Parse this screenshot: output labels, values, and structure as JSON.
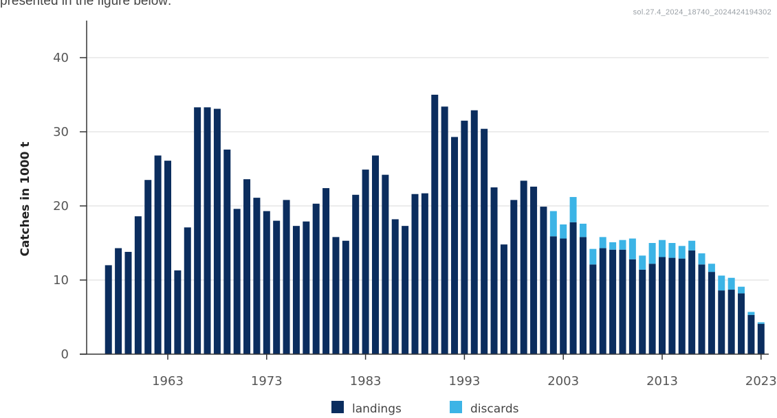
{
  "caption": {
    "text": "presented in the figure below:"
  },
  "stamp": "sol.27.4_2024_18740_2024424194302",
  "chart_data": {
    "type": "bar",
    "stacked": true,
    "title": "",
    "xlabel": "",
    "ylabel": "Catches in 1000 t",
    "ylim": [
      0,
      45
    ],
    "yticks": [
      0,
      10,
      20,
      30,
      40
    ],
    "xticks": [
      1963,
      1973,
      1983,
      1993,
      2003,
      2013,
      2023
    ],
    "grid": true,
    "legend_position": "bottom",
    "categories": [
      1957,
      1958,
      1959,
      1960,
      1961,
      1962,
      1963,
      1964,
      1965,
      1966,
      1967,
      1968,
      1969,
      1970,
      1971,
      1972,
      1973,
      1974,
      1975,
      1976,
      1977,
      1978,
      1979,
      1980,
      1981,
      1982,
      1983,
      1984,
      1985,
      1986,
      1987,
      1988,
      1989,
      1990,
      1991,
      1992,
      1993,
      1994,
      1995,
      1996,
      1997,
      1998,
      1999,
      2000,
      2001,
      2002,
      2003,
      2004,
      2005,
      2006,
      2007,
      2008,
      2009,
      2010,
      2011,
      2012,
      2013,
      2014,
      2015,
      2016,
      2017,
      2018,
      2019,
      2020,
      2021,
      2022,
      2023
    ],
    "series": [
      {
        "name": "landings",
        "color": "#0b2d5e",
        "values": [
          12.0,
          14.3,
          13.8,
          18.6,
          23.5,
          26.8,
          26.1,
          11.3,
          17.1,
          33.3,
          33.3,
          33.1,
          27.6,
          19.6,
          23.6,
          21.1,
          19.3,
          18.0,
          20.8,
          17.3,
          17.9,
          20.3,
          22.4,
          15.8,
          15.3,
          21.5,
          24.9,
          26.8,
          24.2,
          18.2,
          17.3,
          21.6,
          21.7,
          35.0,
          33.4,
          29.3,
          31.5,
          32.9,
          30.4,
          22.5,
          14.8,
          20.8,
          23.4,
          22.6,
          19.9,
          15.9,
          15.6,
          17.8,
          15.8,
          12.1,
          14.3,
          14.1,
          14.1,
          12.8,
          11.4,
          12.2,
          13.1,
          13.0,
          12.9,
          14.0,
          12.1,
          11.1,
          8.6,
          8.7,
          8.2,
          5.3,
          4.1
        ]
      },
      {
        "name": "discards",
        "color": "#3cb4e6",
        "values": [
          0,
          0,
          0,
          0,
          0,
          0,
          0,
          0,
          0,
          0,
          0,
          0,
          0,
          0,
          0,
          0,
          0,
          0,
          0,
          0,
          0,
          0,
          0,
          0,
          0,
          0,
          0,
          0,
          0,
          0,
          0,
          0,
          0,
          0,
          0,
          0,
          0,
          0,
          0,
          0,
          0,
          0,
          0,
          0,
          0,
          3.4,
          1.9,
          3.4,
          1.8,
          2.1,
          1.5,
          1.0,
          1.3,
          2.8,
          1.9,
          2.8,
          2.3,
          2.0,
          1.7,
          1.3,
          1.5,
          1.1,
          2.0,
          1.6,
          0.9,
          0.4,
          0.2
        ]
      }
    ]
  }
}
